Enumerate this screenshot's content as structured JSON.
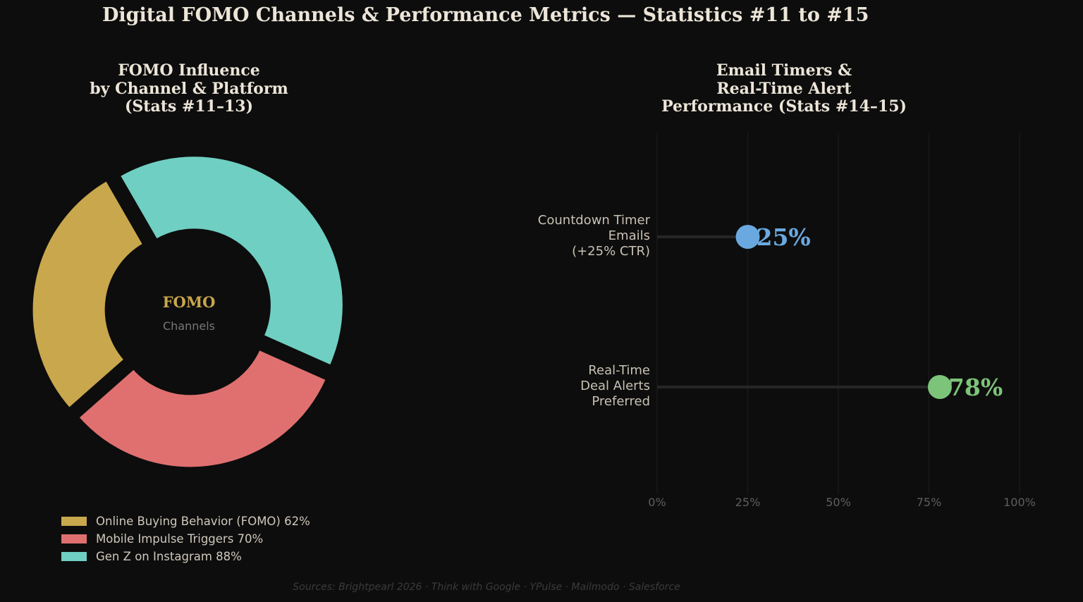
{
  "title": "Digital FOMO Channels & Performance Metrics — Statistics #11 to #15",
  "footer": "Sources: Brightpearl 2026 · Think with Google · YPulse · Mailmodo · Salesforce",
  "colors": {
    "background": "#0d0d0d",
    "online": "#c9a74c",
    "mobile": "#e07070",
    "genz": "#6fcfc2",
    "timer": "#6aa9e0",
    "alerts": "#7cc47a"
  },
  "chart_data": [
    {
      "type": "pie",
      "title": "FOMO Influence\nby Channel & Platform\n(Stats #11–13)",
      "center_label": "FOMO",
      "center_sublabel": "Channels",
      "categories": [
        "Online Buying Behavior (FOMO) 62%",
        "Mobile Impulse Triggers 70%",
        "Gen Z on Instagram 88%"
      ],
      "values": [
        62,
        70,
        88
      ],
      "colors": [
        "#c9a74c",
        "#e07070",
        "#6fcfc2"
      ],
      "legend": "bottom-left"
    },
    {
      "type": "scatter",
      "title": "Email Timers &\nReal-Time Alert\nPerformance (Stats #14–15)",
      "categories": [
        "Countdown Timer\nEmails\n(+25% CTR)",
        "Real-Time\nDeal Alerts\nPreferred"
      ],
      "values": [
        25,
        78
      ],
      "value_labels": [
        "25%",
        "78%"
      ],
      "colors": [
        "#6aa9e0",
        "#7cc47a"
      ],
      "xlim": [
        0,
        100
      ],
      "x_ticks": [
        "0%",
        "25%",
        "50%",
        "75%",
        "100%"
      ],
      "grid": true
    }
  ]
}
